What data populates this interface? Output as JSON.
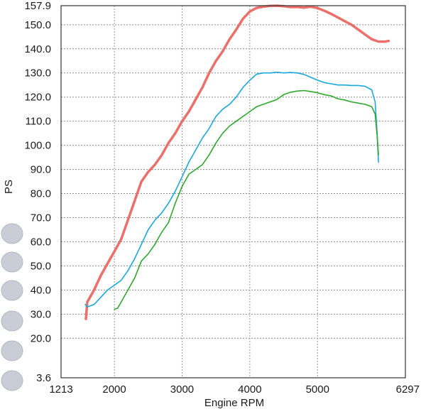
{
  "chart_data": {
    "type": "line",
    "title": "",
    "xlabel": "Engine RPM",
    "ylabel": "PS",
    "xlim": [
      1213,
      6297
    ],
    "ylim": [
      3.6,
      157.9
    ],
    "x_ticks": [
      {
        "value": 1213,
        "label": "1213"
      },
      {
        "value": 2000,
        "label": "2000"
      },
      {
        "value": 3000,
        "label": "3000"
      },
      {
        "value": 4000,
        "label": "4000"
      },
      {
        "value": 5000,
        "label": "5000"
      },
      {
        "value": 6297,
        "label": "6297"
      }
    ],
    "y_ticks": [
      {
        "value": 157.9,
        "label": "157.9"
      },
      {
        "value": 150.0,
        "label": "150.0"
      },
      {
        "value": 140.0,
        "label": "140.0"
      },
      {
        "value": 130.0,
        "label": "130.0"
      },
      {
        "value": 120.0,
        "label": "120.0"
      },
      {
        "value": 110.0,
        "label": "110.0"
      },
      {
        "value": 100.0,
        "label": "100.0"
      },
      {
        "value": 90.0,
        "label": "90.0"
      },
      {
        "value": 80.0,
        "label": "80.0"
      },
      {
        "value": 70.0,
        "label": "70.0"
      },
      {
        "value": 60.0,
        "label": "60.0"
      },
      {
        "value": 50.0,
        "label": "50.0"
      },
      {
        "value": 40.0,
        "label": "40.0"
      },
      {
        "value": 30.0,
        "label": "30.0"
      },
      {
        "value": 20.0,
        "label": "20.0"
      },
      {
        "value": 3.6,
        "label": "3.6"
      }
    ],
    "grid": true,
    "series": [
      {
        "color": "#ec6f6a",
        "stroke_width": 3.5,
        "points": [
          [
            1580,
            28
          ],
          [
            1600,
            35
          ],
          [
            1700,
            40
          ],
          [
            1800,
            46
          ],
          [
            1900,
            51
          ],
          [
            2000,
            56
          ],
          [
            2100,
            61
          ],
          [
            2200,
            69
          ],
          [
            2300,
            77
          ],
          [
            2400,
            85
          ],
          [
            2500,
            89
          ],
          [
            2600,
            92
          ],
          [
            2700,
            96
          ],
          [
            2800,
            101
          ],
          [
            2900,
            105
          ],
          [
            3000,
            110
          ],
          [
            3100,
            114
          ],
          [
            3200,
            119
          ],
          [
            3300,
            124
          ],
          [
            3400,
            130
          ],
          [
            3500,
            135
          ],
          [
            3600,
            139
          ],
          [
            3700,
            144
          ],
          [
            3800,
            148
          ],
          [
            3900,
            152.5
          ],
          [
            4000,
            155.5
          ],
          [
            4100,
            157
          ],
          [
            4200,
            157.5
          ],
          [
            4300,
            157.8
          ],
          [
            4400,
            157.9
          ],
          [
            4500,
            157.7
          ],
          [
            4600,
            157.3
          ],
          [
            4700,
            157.4
          ],
          [
            4800,
            157.1
          ],
          [
            4900,
            157.5
          ],
          [
            5000,
            156.9
          ],
          [
            5100,
            155.8
          ],
          [
            5200,
            154.5
          ],
          [
            5300,
            153
          ],
          [
            5400,
            151.5
          ],
          [
            5500,
            150
          ],
          [
            5600,
            148
          ],
          [
            5700,
            146
          ],
          [
            5800,
            144
          ],
          [
            5900,
            143
          ],
          [
            6000,
            143
          ],
          [
            6050,
            143.3
          ]
        ]
      },
      {
        "color": "#1aa9dd",
        "stroke_width": 1.6,
        "points": [
          [
            1570,
            34
          ],
          [
            1600,
            33
          ],
          [
            1700,
            34
          ],
          [
            1800,
            37
          ],
          [
            1900,
            40
          ],
          [
            2000,
            42
          ],
          [
            2100,
            44
          ],
          [
            2200,
            48
          ],
          [
            2300,
            53
          ],
          [
            2400,
            59
          ],
          [
            2500,
            65
          ],
          [
            2600,
            69
          ],
          [
            2700,
            72
          ],
          [
            2800,
            76
          ],
          [
            2900,
            81
          ],
          [
            3000,
            87
          ],
          [
            3100,
            93
          ],
          [
            3200,
            98
          ],
          [
            3300,
            103
          ],
          [
            3400,
            107
          ],
          [
            3500,
            112
          ],
          [
            3600,
            115
          ],
          [
            3700,
            117
          ],
          [
            3800,
            120
          ],
          [
            3900,
            124
          ],
          [
            4000,
            127
          ],
          [
            4100,
            129.5
          ],
          [
            4200,
            130
          ],
          [
            4300,
            130
          ],
          [
            4400,
            130.3
          ],
          [
            4500,
            130
          ],
          [
            4600,
            130.2
          ],
          [
            4700,
            130
          ],
          [
            4800,
            129.4
          ],
          [
            4900,
            128.2
          ],
          [
            5000,
            127
          ],
          [
            5100,
            126
          ],
          [
            5200,
            125.5
          ],
          [
            5300,
            125
          ],
          [
            5400,
            125
          ],
          [
            5500,
            124.8
          ],
          [
            5600,
            124.8
          ],
          [
            5700,
            124.5
          ],
          [
            5800,
            123
          ],
          [
            5850,
            118
          ],
          [
            5880,
            105
          ],
          [
            5900,
            93
          ]
        ]
      },
      {
        "color": "#2ea82e",
        "stroke_width": 1.6,
        "points": [
          [
            2000,
            32
          ],
          [
            2050,
            32.5
          ],
          [
            2100,
            35
          ],
          [
            2200,
            40
          ],
          [
            2300,
            45
          ],
          [
            2400,
            52
          ],
          [
            2500,
            55
          ],
          [
            2600,
            59
          ],
          [
            2700,
            64
          ],
          [
            2800,
            68
          ],
          [
            2900,
            76
          ],
          [
            3000,
            83
          ],
          [
            3100,
            88
          ],
          [
            3200,
            90
          ],
          [
            3300,
            92
          ],
          [
            3400,
            96
          ],
          [
            3500,
            101
          ],
          [
            3600,
            105
          ],
          [
            3700,
            108
          ],
          [
            3800,
            110
          ],
          [
            3900,
            112
          ],
          [
            4000,
            114
          ],
          [
            4100,
            116
          ],
          [
            4200,
            117
          ],
          [
            4300,
            118
          ],
          [
            4400,
            119
          ],
          [
            4500,
            121
          ],
          [
            4600,
            122
          ],
          [
            4700,
            122.5
          ],
          [
            4800,
            122.7
          ],
          [
            4900,
            122.3
          ],
          [
            5000,
            121.8
          ],
          [
            5100,
            121
          ],
          [
            5200,
            120.5
          ],
          [
            5300,
            119.3
          ],
          [
            5400,
            118.8
          ],
          [
            5500,
            118
          ],
          [
            5600,
            117.5
          ],
          [
            5700,
            117
          ],
          [
            5800,
            116
          ],
          [
            5850,
            113
          ],
          [
            5880,
            104
          ],
          [
            5900,
            96
          ]
        ]
      }
    ]
  }
}
